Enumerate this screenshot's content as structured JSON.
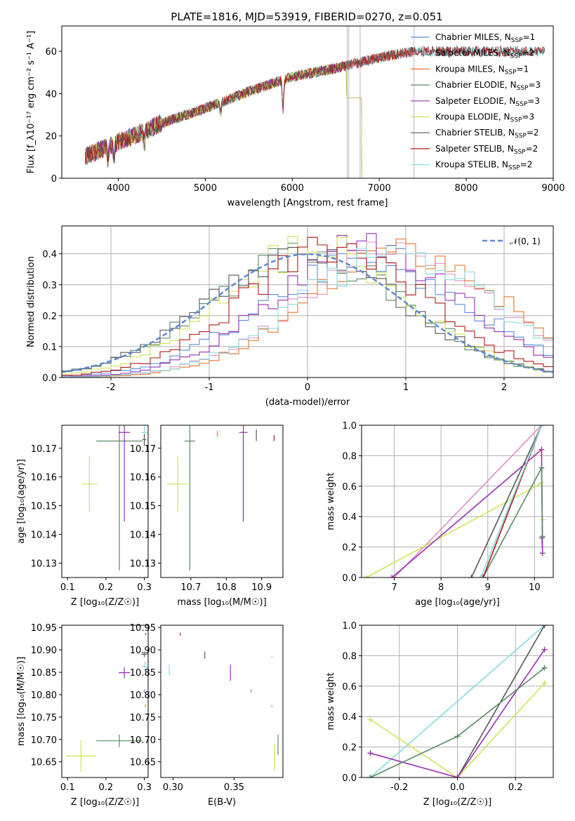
{
  "figure": {
    "title": "PLATE=1816, MJD=53919, FIBERID=0270, z=0.051"
  },
  "colors": {
    "Chabrier MILES": "#5b8bd8",
    "Salpeter MILES": "#e18fbf",
    "Kroupa MILES": "#e8762b",
    "Chabrier ELODIE": "#5a8a63",
    "Salpeter ELODIE": "#9a2fb5",
    "Kroupa ELODIE": "#cfe35a",
    "Chabrier STELIB": "#575757",
    "Salpeter STELIB": "#b01717",
    "Kroupa STELIB": "#86dbe0"
  },
  "legend": [
    {
      "name": "Chabrier MILES",
      "nssp": "1"
    },
    {
      "name": "Salpeter MILES",
      "nssp": "2"
    },
    {
      "name": "Kroupa MILES",
      "nssp": "1"
    },
    {
      "name": "Chabrier ELODIE",
      "nssp": "3"
    },
    {
      "name": "Salpeter ELODIE",
      "nssp": "3"
    },
    {
      "name": "Kroupa ELODIE",
      "nssp": "3"
    },
    {
      "name": "Chabrier STELIB",
      "nssp": "2"
    },
    {
      "name": "Salpeter STELIB",
      "nssp": "2"
    },
    {
      "name": "Kroupa STELIB",
      "nssp": "2"
    }
  ],
  "chart_data": [
    {
      "id": "spectrum",
      "type": "line",
      "xlabel": "wavelength [Angstrom, rest frame]",
      "ylabel": "Flux [f_λ10⁻¹⁷ erg cm⁻² s⁻¹ A⁻¹]",
      "xlim": [
        3350,
        9000
      ],
      "ylim": [
        0,
        72
      ],
      "xticks": [
        4000,
        5000,
        6000,
        7000,
        8000,
        9000
      ],
      "yticks": [
        0,
        20,
        40,
        60
      ],
      "grid": false,
      "legend_position": "upper right",
      "continuum": {
        "x": [
          3600,
          4000,
          4500,
          5000,
          5500,
          6000,
          6500,
          7000,
          7400
        ],
        "y": [
          10,
          17,
          26,
          33,
          41,
          48,
          52,
          57,
          60
        ]
      },
      "absorption_features": [
        {
          "x": 3880,
          "depth": 6
        },
        {
          "x": 3950,
          "depth": 7
        },
        {
          "x": 4300,
          "depth": 6
        },
        {
          "x": 5175,
          "depth": 5
        },
        {
          "x": 5893,
          "depth": 14
        }
      ],
      "truncation": {
        "x_start": 6620,
        "x_end": 6800,
        "level": 38
      }
    },
    {
      "id": "residuals",
      "type": "step",
      "xlabel": "(data-model)/error",
      "ylabel": "Normed distribution",
      "xlim": [
        -2.5,
        2.5
      ],
      "ylim": [
        0,
        0.49
      ],
      "xticks": [
        -2,
        -1,
        0,
        1,
        2
      ],
      "yticks": [
        0.0,
        0.1,
        0.2,
        0.3,
        0.4
      ],
      "grid": true,
      "legend_position": "upper right",
      "reference_curve": {
        "label": "𝒩(0, 1)",
        "mean": 0,
        "sigma": 1,
        "style": "dashed",
        "color": "#5b8bd8"
      },
      "series": [
        {
          "name": "Chabrier MILES",
          "mean": 0.6,
          "sigma": 1.05
        },
        {
          "name": "Salpeter MILES",
          "mean": 0.9,
          "sigma": 1.0
        },
        {
          "name": "Kroupa MILES",
          "mean": 1.0,
          "sigma": 1.0
        },
        {
          "name": "Chabrier ELODIE",
          "mean": 0.0,
          "sigma": 1.0
        },
        {
          "name": "Salpeter ELODIE",
          "mean": 0.6,
          "sigma": 0.95
        },
        {
          "name": "Kroupa ELODIE",
          "mean": 0.1,
          "sigma": 0.95
        },
        {
          "name": "Chabrier STELIB",
          "mean": 0.0,
          "sigma": 1.0
        },
        {
          "name": "Salpeter STELIB",
          "mean": 0.3,
          "sigma": 0.95
        },
        {
          "name": "Kroupa STELIB",
          "mean": 0.9,
          "sigma": 1.0
        }
      ]
    },
    {
      "id": "age_vs_Z",
      "type": "scatter",
      "xlabel": "Z [log₁₀(Z/Z☉)]",
      "ylabel": "age  [log₁₀(age/yr)]",
      "xlim": [
        0.085,
        0.31
      ],
      "ylim": [
        10.125,
        10.178
      ],
      "xticks": [
        0.1,
        0.2,
        0.3
      ],
      "yticks": [
        10.13,
        10.14,
        10.15,
        10.16,
        10.17
      ],
      "grid": false,
      "points": [
        {
          "series": "Kroupa ELODIE",
          "x": 0.157,
          "y": 10.1575,
          "xerr": 0.02,
          "yerr": 0.0095
        },
        {
          "series": "Chabrier ELODIE",
          "x": 0.235,
          "y": 10.1725,
          "xerr": 0.06,
          "yerr": 0.045
        },
        {
          "series": "Salpeter ELODIE",
          "x": 0.248,
          "y": 10.1755,
          "xerr": 0.015,
          "yerr": 0.031
        },
        {
          "series": "Kroupa STELIB",
          "x": 0.3,
          "y": 10.1755,
          "xerr": 0.008,
          "yerr": 0.005
        },
        {
          "series": "Chabrier STELIB",
          "x": 0.3,
          "y": 10.173,
          "xerr": 0.005,
          "yerr": 0.002
        }
      ]
    },
    {
      "id": "age_vs_mass",
      "type": "scatter",
      "xlabel": "mass [log₁₀(M/M☉)]",
      "ylabel": "",
      "xlim": [
        10.615,
        10.96
      ],
      "ylim": [
        10.125,
        10.178
      ],
      "xticks": [
        10.7,
        10.8,
        10.9
      ],
      "yticks": [
        10.13,
        10.14,
        10.15,
        10.16,
        10.17
      ],
      "grid": false,
      "points": [
        {
          "series": "Kroupa ELODIE",
          "x": 10.663,
          "y": 10.1575,
          "xerr": 0.03,
          "yerr": 0.0095
        },
        {
          "series": "Chabrier ELODIE",
          "x": 10.697,
          "y": 10.1725,
          "xerr": 0.015,
          "yerr": 0.045
        },
        {
          "series": "Salpeter ELODIE",
          "x": 10.848,
          "y": 10.1755,
          "xerr": 0.012,
          "yerr": 0.031
        },
        {
          "series": "Kroupa MILES",
          "x": 10.775,
          "y": 10.175,
          "xerr": 0.0,
          "yerr": 0.001
        },
        {
          "series": "Chabrier STELIB",
          "x": 10.885,
          "y": 10.1745,
          "xerr": 0.0,
          "yerr": 0.002
        },
        {
          "series": "Salpeter STELIB",
          "x": 10.935,
          "y": 10.1735,
          "xerr": 0.0,
          "yerr": 0.001
        }
      ]
    },
    {
      "id": "weight_vs_age",
      "type": "line",
      "xlabel": "age  [log₁₀(age/yr)]",
      "ylabel": "mass weight",
      "xlim": [
        6.3,
        10.4
      ],
      "ylim": [
        0,
        1.0
      ],
      "xticks": [
        7,
        8,
        9,
        10
      ],
      "yticks": [
        0.0,
        0.2,
        0.4,
        0.6,
        0.8,
        1.0
      ],
      "grid": true,
      "series": [
        {
          "name": "Salpeter MILES",
          "x": [
            7.0,
            10.15
          ],
          "y": [
            0.0,
            1.0
          ]
        },
        {
          "name": "Kroupa ELODIE",
          "x": [
            6.4,
            10.15,
            10.17
          ],
          "y": [
            0.0,
            0.62,
            0.38
          ]
        },
        {
          "name": "Salpeter ELODIE",
          "x": [
            6.95,
            10.15,
            10.17,
            10.16
          ],
          "y": [
            0.0,
            0.84,
            0.16,
            0.26
          ]
        },
        {
          "name": "Chabrier STELIB",
          "x": [
            8.65,
            10.15
          ],
          "y": [
            0.0,
            1.0
          ]
        },
        {
          "name": "Chabrier ELODIE",
          "x": [
            8.9,
            10.15,
            10.17
          ],
          "y": [
            0.0,
            0.72,
            0.27
          ]
        },
        {
          "name": "Salpeter STELIB",
          "x": [
            8.9,
            10.15
          ],
          "y": [
            0.0,
            1.0
          ]
        },
        {
          "name": "Kroupa STELIB",
          "x": [
            8.85,
            10.15
          ],
          "y": [
            0.0,
            1.0
          ]
        }
      ]
    },
    {
      "id": "mass_vs_Z",
      "type": "scatter",
      "xlabel": "Z [log₁₀(Z/Z☉)]",
      "ylabel": "mass [log₁₀(M/M☉)]",
      "xlim": [
        0.085,
        0.31
      ],
      "ylim": [
        10.615,
        10.955
      ],
      "xticks": [
        0.1,
        0.2,
        0.3
      ],
      "yticks": [
        10.65,
        10.7,
        10.75,
        10.8,
        10.85,
        10.9,
        10.95
      ],
      "grid": false,
      "points": [
        {
          "series": "Kroupa ELODIE",
          "x": 0.135,
          "y": 10.663,
          "xerr": 0.04,
          "yerr": 0.035
        },
        {
          "series": "Chabrier ELODIE",
          "x": 0.235,
          "y": 10.697,
          "xerr": 0.06,
          "yerr": 0.014
        },
        {
          "series": "Salpeter ELODIE",
          "x": 0.248,
          "y": 10.849,
          "xerr": 0.015,
          "yerr": 0.012
        },
        {
          "series": "Chabrier STELIB",
          "x": 0.3,
          "y": 10.89,
          "xerr": 0.008,
          "yerr": 0.006
        },
        {
          "series": "Kroupa STELIB",
          "x": 0.302,
          "y": 10.863,
          "xerr": 0.008,
          "yerr": 0.01
        },
        {
          "series": "Salpeter STELIB",
          "x": 0.304,
          "y": 10.935,
          "xerr": 0.0,
          "yerr": 0.002
        },
        {
          "series": "Kroupa MILES",
          "x": 0.303,
          "y": 10.775,
          "xerr": 0.0,
          "yerr": 0.003
        },
        {
          "series": "Chabrier MILES",
          "x": 0.3,
          "y": 10.808,
          "xerr": 0.0,
          "yerr": 0.004
        }
      ]
    },
    {
      "id": "mass_vs_ebv",
      "type": "scatter",
      "xlabel": "E(B-V)",
      "ylabel": "",
      "xlim": [
        0.29,
        0.39
      ],
      "ylim": [
        10.615,
        10.955
      ],
      "xticks": [
        0.3,
        0.35
      ],
      "yticks": [
        10.65,
        10.7,
        10.75,
        10.8,
        10.85,
        10.9,
        10.95
      ],
      "grid": false,
      "points": [
        {
          "series": "Salpeter STELIB",
          "x": 0.306,
          "y": 10.935,
          "yerr": 0.003
        },
        {
          "series": "Chabrier STELIB",
          "x": 0.326,
          "y": 10.888,
          "yerr": 0.008
        },
        {
          "series": "Kroupa STELIB",
          "x": 0.297,
          "y": 10.855,
          "yerr": 0.012
        },
        {
          "series": "Salpeter ELODIE",
          "x": 0.347,
          "y": 10.849,
          "yerr": 0.018
        },
        {
          "series": "Chabrier MILES",
          "x": 0.364,
          "y": 10.808,
          "yerr": 0.003
        },
        {
          "series": "Salpeter MILES",
          "x": 0.381,
          "y": 10.885,
          "yerr": 0.002
        },
        {
          "series": "Kroupa MILES",
          "x": 0.381,
          "y": 10.775,
          "yerr": 0.002
        },
        {
          "series": "Chabrier ELODIE",
          "x": 0.386,
          "y": 10.688,
          "yerr": 0.023
        },
        {
          "series": "Kroupa ELODIE",
          "x": 0.383,
          "y": 10.66,
          "yerr": 0.03
        }
      ]
    },
    {
      "id": "weight_vs_Z",
      "type": "line",
      "xlabel": "Z [log₁₀(Z/Z☉)]",
      "ylabel": "mass weight",
      "xlim": [
        -0.33,
        0.33
      ],
      "ylim": [
        0,
        1.0
      ],
      "xticks": [
        -0.2,
        0.0,
        0.2
      ],
      "yticks": [
        0.0,
        0.2,
        0.4,
        0.6,
        0.8,
        1.0
      ],
      "grid": true,
      "series": [
        {
          "name": "Kroupa STELIB",
          "x": [
            -0.3,
            0.3
          ],
          "y": [
            0.0,
            1.0
          ]
        },
        {
          "name": "Chabrier STELIB",
          "x": [
            0.0,
            0.3
          ],
          "y": [
            0.0,
            1.0
          ]
        },
        {
          "name": "Kroupa ELODIE",
          "x": [
            -0.3,
            0.0,
            0.3
          ],
          "y": [
            0.38,
            0.0,
            0.62
          ]
        },
        {
          "name": "Salpeter ELODIE",
          "x": [
            -0.3,
            0.0,
            0.3
          ],
          "y": [
            0.16,
            0.0,
            0.84
          ]
        },
        {
          "name": "Chabrier ELODIE",
          "x": [
            -0.3,
            0.0,
            0.3
          ],
          "y": [
            0.0,
            0.27,
            0.72
          ]
        }
      ]
    }
  ]
}
